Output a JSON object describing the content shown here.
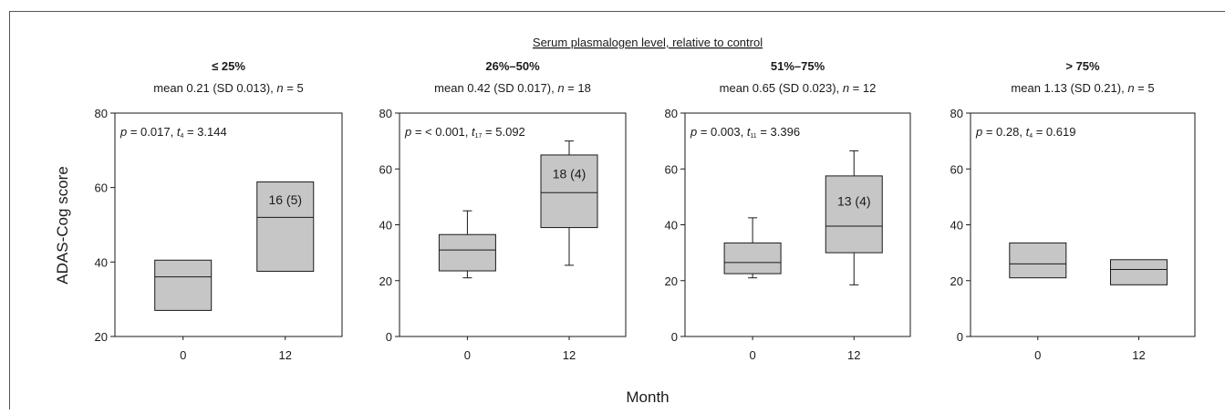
{
  "header": {
    "title": "Serum plasmalogen level, relative to control"
  },
  "ylabel": "ADAS-Cog score",
  "xlabel": "Month",
  "colors": {
    "box_fill": "#c6c6c6",
    "stroke": "#1a1a1a"
  },
  "chart_data": [
    {
      "type": "box",
      "group_label": "≤ 25%",
      "stats": {
        "prefix": "mean 0.21 (SD 0.013), ",
        "n_label": "n",
        "n_value": " = 5"
      },
      "test": {
        "p_label": "p",
        "p_text": " = 0.017, ",
        "t_label": "t",
        "t_sub": "4",
        "t_text": " = 3.144"
      },
      "ylim": [
        20,
        80
      ],
      "yticks": [
        20,
        40,
        60,
        80
      ],
      "categories": [
        "0",
        "12"
      ],
      "boxes": [
        {
          "q1": 27,
          "median": 36,
          "q3": 40.5,
          "whisker_low": null,
          "whisker_high": null,
          "label": ""
        },
        {
          "q1": 37.5,
          "median": 52,
          "q3": 61.5,
          "whisker_low": null,
          "whisker_high": null,
          "label": "16 (5)"
        }
      ]
    },
    {
      "type": "box",
      "group_label": "26%–50%",
      "stats": {
        "prefix": "mean 0.42 (SD 0.017),  ",
        "n_label": "n",
        "n_value": " = 18"
      },
      "test": {
        "p_label": "p",
        "p_text": " = < 0.001, ",
        "t_label": "t",
        "t_sub": "17",
        "t_text": " = 5.092"
      },
      "ylim": [
        0,
        80
      ],
      "yticks": [
        0,
        20,
        40,
        60,
        80
      ],
      "categories": [
        "0",
        "12"
      ],
      "boxes": [
        {
          "q1": 23.5,
          "median": 31,
          "q3": 36.5,
          "whisker_low": 21,
          "whisker_high": 45,
          "label": ""
        },
        {
          "q1": 39,
          "median": 51.5,
          "q3": 65,
          "whisker_low": 25.5,
          "whisker_high": 70,
          "label": "18 (4)"
        }
      ]
    },
    {
      "type": "box",
      "group_label": "51%–75%",
      "stats": {
        "prefix": "mean 0.65 (SD 0.023), ",
        "n_label": "n",
        "n_value": " = 12"
      },
      "test": {
        "p_label": "p",
        "p_text": " = 0.003, ",
        "t_label": "t",
        "t_sub": "11",
        "t_text": " = 3.396"
      },
      "ylim": [
        0,
        80
      ],
      "yticks": [
        0,
        20,
        40,
        60,
        80
      ],
      "categories": [
        "0",
        "12"
      ],
      "boxes": [
        {
          "q1": 22.5,
          "median": 26.5,
          "q3": 33.5,
          "whisker_low": 21,
          "whisker_high": 42.5,
          "label": ""
        },
        {
          "q1": 30,
          "median": 39.5,
          "q3": 57.5,
          "whisker_low": 18.5,
          "whisker_high": 66.5,
          "label": "13 (4)"
        }
      ]
    },
    {
      "type": "box",
      "group_label": "> 75%",
      "stats": {
        "prefix": "mean 1.13 (SD 0.21), ",
        "n_label": "n",
        "n_value": " = 5"
      },
      "test": {
        "p_label": "p",
        "p_text": " = 0.28, ",
        "t_label": "t",
        "t_sub": "4",
        "t_text": " = 0.619"
      },
      "ylim": [
        0,
        80
      ],
      "yticks": [
        0,
        20,
        40,
        60,
        80
      ],
      "categories": [
        "0",
        "12"
      ],
      "boxes": [
        {
          "q1": 21,
          "median": 26,
          "q3": 33.5,
          "whisker_low": null,
          "whisker_high": null,
          "label": ""
        },
        {
          "q1": 18.5,
          "median": 24,
          "q3": 27.5,
          "whisker_low": null,
          "whisker_high": null,
          "label": ""
        }
      ]
    }
  ]
}
